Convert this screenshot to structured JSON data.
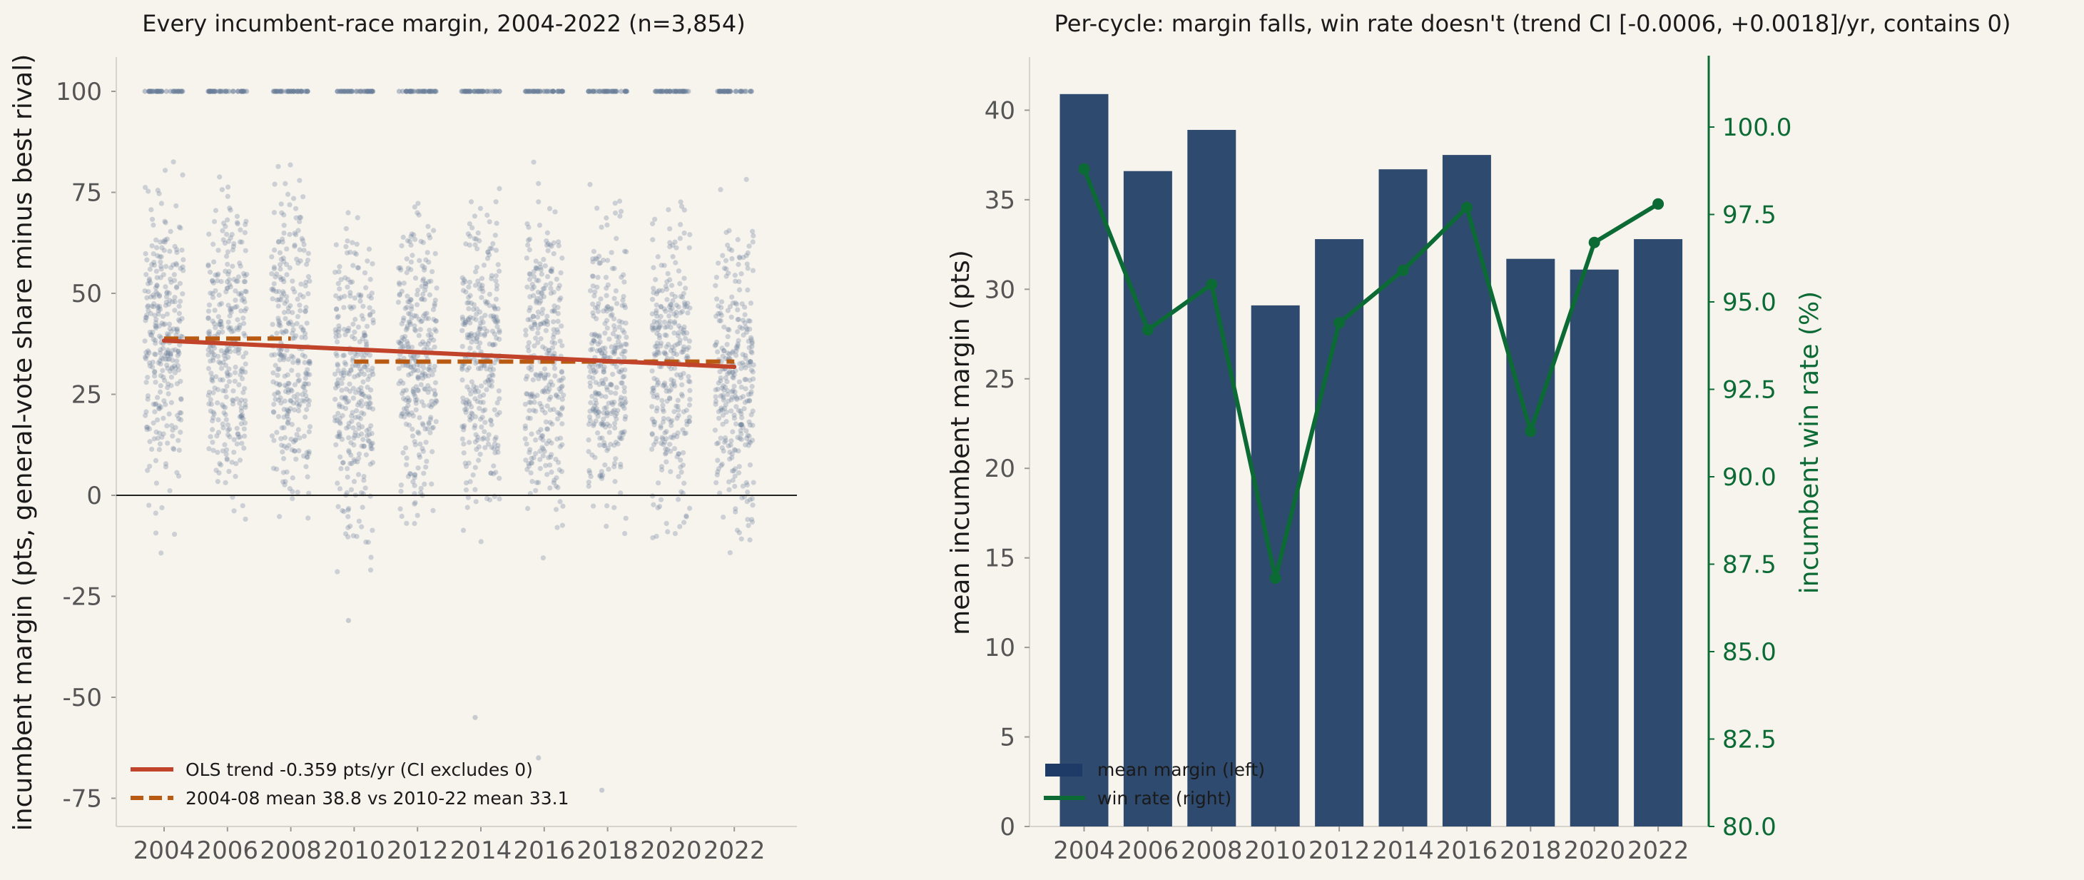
{
  "chart_data": [
    {
      "type": "scatter",
      "title": "Every incumbent-race margin, 2004-2022 (n=3,854)",
      "ylabel": "incumbent margin (pts, general-vote share minus best rival)",
      "xlabel": "",
      "categories": [
        "2004",
        "2006",
        "2008",
        "2010",
        "2012",
        "2014",
        "2016",
        "2018",
        "2020",
        "2022"
      ],
      "yticks": [
        100,
        75,
        50,
        25,
        0,
        -25,
        -50,
        -75
      ],
      "ylim": [
        -80,
        108
      ],
      "point_color": "#6b7f99",
      "zero_line": true,
      "grid": false,
      "trend": {
        "label": "OLS trend -0.359 pts/yr (CI excludes 0)",
        "color": "#c0432a",
        "start": {
          "x": 2004,
          "y": 38.3
        },
        "end": {
          "x": 2022,
          "y": 31.8
        }
      },
      "means": {
        "label": "2004-08 mean 38.8 vs 2010-22 mean 33.1",
        "color": "#b85a12",
        "segments": [
          {
            "x_start": 2004,
            "x_end": 2008,
            "y": 38.8
          },
          {
            "x_start": 2010,
            "x_end": 2022,
            "y": 33.1
          }
        ]
      },
      "legend_position": "lower-left"
    },
    {
      "type": "bar",
      "title": "Per-cycle: margin falls, win rate doesn't (trend CI [-0.0006, +0.0018]/yr, contains 0)",
      "categories": [
        "2004",
        "2006",
        "2008",
        "2010",
        "2012",
        "2014",
        "2016",
        "2018",
        "2020",
        "2022"
      ],
      "series": [
        {
          "name": "mean margin (left)",
          "axis": "left",
          "type": "bar",
          "color": "#2e4a6f",
          "values": [
            40.9,
            36.6,
            38.9,
            29.1,
            32.8,
            36.7,
            37.5,
            31.7,
            31.1,
            32.8
          ]
        },
        {
          "name": "win rate (right)",
          "axis": "right",
          "type": "line",
          "color": "#0c6b35",
          "values": [
            98.8,
            94.2,
            95.5,
            87.1,
            94.4,
            95.9,
            97.7,
            91.3,
            96.7,
            97.8
          ]
        }
      ],
      "ylabel": "mean incumbent margin (pts)",
      "ylabel_right": "incumbent win rate (%)",
      "ylim": [
        0,
        43
      ],
      "ylim_right": [
        80,
        102
      ],
      "yticks": [
        "0",
        "5",
        "10",
        "15",
        "20",
        "25",
        "30",
        "35",
        "40"
      ],
      "yticks_right": [
        "80.0",
        "82.5",
        "85.0",
        "87.5",
        "90.0",
        "92.5",
        "95.0",
        "97.5",
        "100.0"
      ],
      "legend_position": "lower-left"
    }
  ]
}
